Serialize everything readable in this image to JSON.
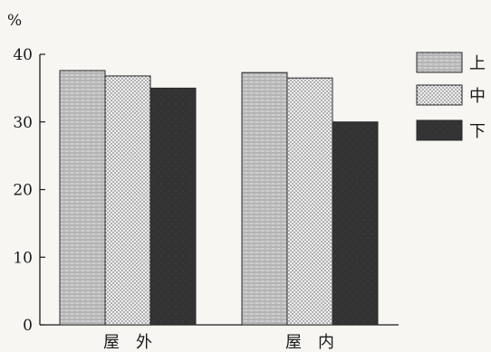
{
  "chart_data": {
    "type": "bar",
    "unit_label": "%",
    "categories": [
      "屋　外",
      "屋　内"
    ],
    "ylim": [
      0,
      40
    ],
    "yticks": [
      0,
      10,
      20,
      30,
      40
    ],
    "grid": false,
    "legend_position": "right",
    "series": [
      {
        "name": "上",
        "values": [
          37.6,
          37.3
        ],
        "pattern": "hatch-horizontal"
      },
      {
        "name": "中",
        "values": [
          36.8,
          36.5
        ],
        "pattern": "dots"
      },
      {
        "name": "下",
        "values": [
          35.0,
          30.0
        ],
        "pattern": "dark"
      }
    ]
  },
  "colors": {
    "axis": "#1a1a1a",
    "dark_fill": "#3a3a3a",
    "hatch_fill": "#c9c9c9",
    "dot_fill": "#e6e6e6"
  }
}
